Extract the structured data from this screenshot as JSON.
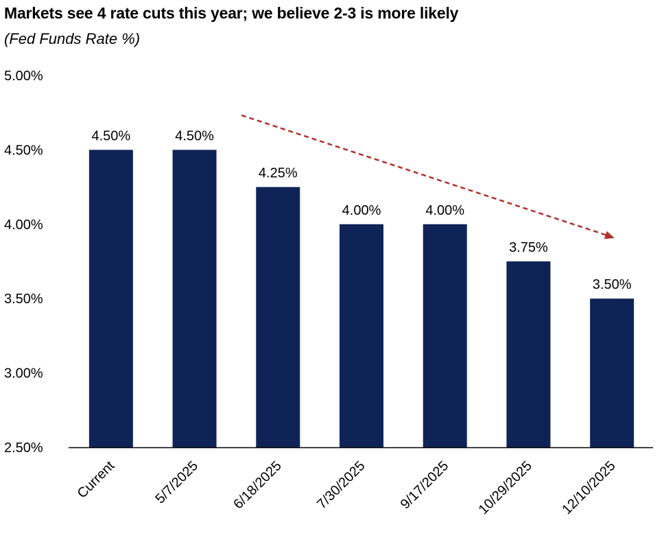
{
  "chart_data": {
    "type": "bar",
    "title": "Markets see 4 rate cuts this year; we believe 2-3 is more likely",
    "subtitle": "(Fed Funds Rate %)",
    "categories": [
      "Current",
      "5/7/2025",
      "6/18/2025",
      "7/30/2025",
      "9/17/2025",
      "10/29/2025",
      "12/10/2025"
    ],
    "values": [
      4.5,
      4.5,
      4.25,
      4.0,
      4.0,
      3.75,
      3.5
    ],
    "data_labels": [
      "4.50%",
      "4.50%",
      "4.25%",
      "4.00%",
      "4.00%",
      "3.75%",
      "3.50%"
    ],
    "ylim": [
      2.5,
      5.0
    ],
    "yticks": [
      2.5,
      3.0,
      3.5,
      4.0,
      4.5,
      5.0
    ],
    "ytick_labels": [
      "2.50%",
      "3.00%",
      "3.50%",
      "4.00%",
      "4.50%",
      "5.00%"
    ],
    "grid": false,
    "bar_color": "#0f2356",
    "trend_arrow_color": "#b0302a"
  }
}
